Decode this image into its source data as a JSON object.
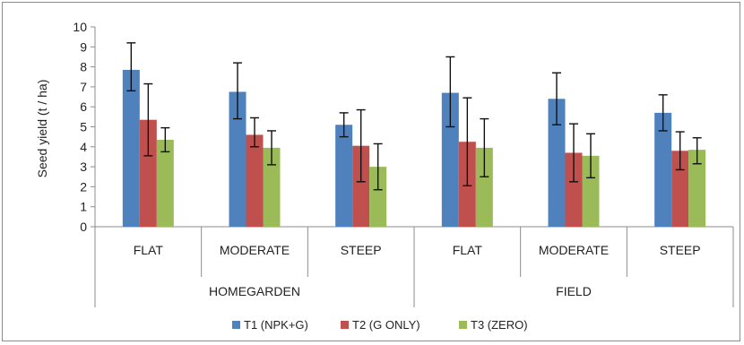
{
  "chart_data": {
    "type": "bar",
    "title": "",
    "ylabel": "Seed yield (t / ha)",
    "xlabel": "",
    "ylim": [
      0,
      10
    ],
    "yticks": [
      0,
      1,
      2,
      3,
      4,
      5,
      6,
      7,
      8,
      9,
      10
    ],
    "grid": false,
    "legend_position": "bottom",
    "groups": [
      {
        "label": "HOMEGARDEN",
        "categories": [
          "FLAT",
          "MODERATE",
          "STEEP"
        ]
      },
      {
        "label": "FIELD",
        "categories": [
          "FLAT",
          "MODERATE",
          "STEEP"
        ]
      }
    ],
    "series": [
      {
        "name": "T1 (NPK+G)",
        "color": "#4f81bd",
        "values": [
          7.85,
          6.75,
          5.1,
          6.7,
          6.4,
          5.7
        ],
        "error": [
          [
            1.05,
            1.35
          ],
          [
            1.35,
            1.45
          ],
          [
            0.6,
            0.6
          ],
          [
            1.7,
            1.8
          ],
          [
            1.3,
            1.3
          ],
          [
            0.9,
            0.9
          ]
        ]
      },
      {
        "name": "T2 (G ONLY)",
        "color": "#c0504d",
        "values": [
          5.35,
          4.6,
          4.05,
          4.25,
          3.7,
          3.8
        ],
        "error": [
          [
            1.8,
            1.8
          ],
          [
            0.6,
            0.85
          ],
          [
            1.8,
            1.8
          ],
          [
            2.2,
            2.2
          ],
          [
            1.45,
            1.45
          ],
          [
            0.95,
            0.95
          ]
        ]
      },
      {
        "name": "T3 (ZERO)",
        "color": "#9bbb59",
        "values": [
          4.35,
          3.95,
          3.0,
          3.95,
          3.55,
          3.85
        ],
        "error": [
          [
            0.6,
            0.6
          ],
          [
            0.85,
            0.85
          ],
          [
            1.15,
            1.15
          ],
          [
            1.45,
            1.45
          ],
          [
            1.1,
            1.1
          ],
          [
            0.7,
            0.6
          ]
        ]
      }
    ]
  }
}
